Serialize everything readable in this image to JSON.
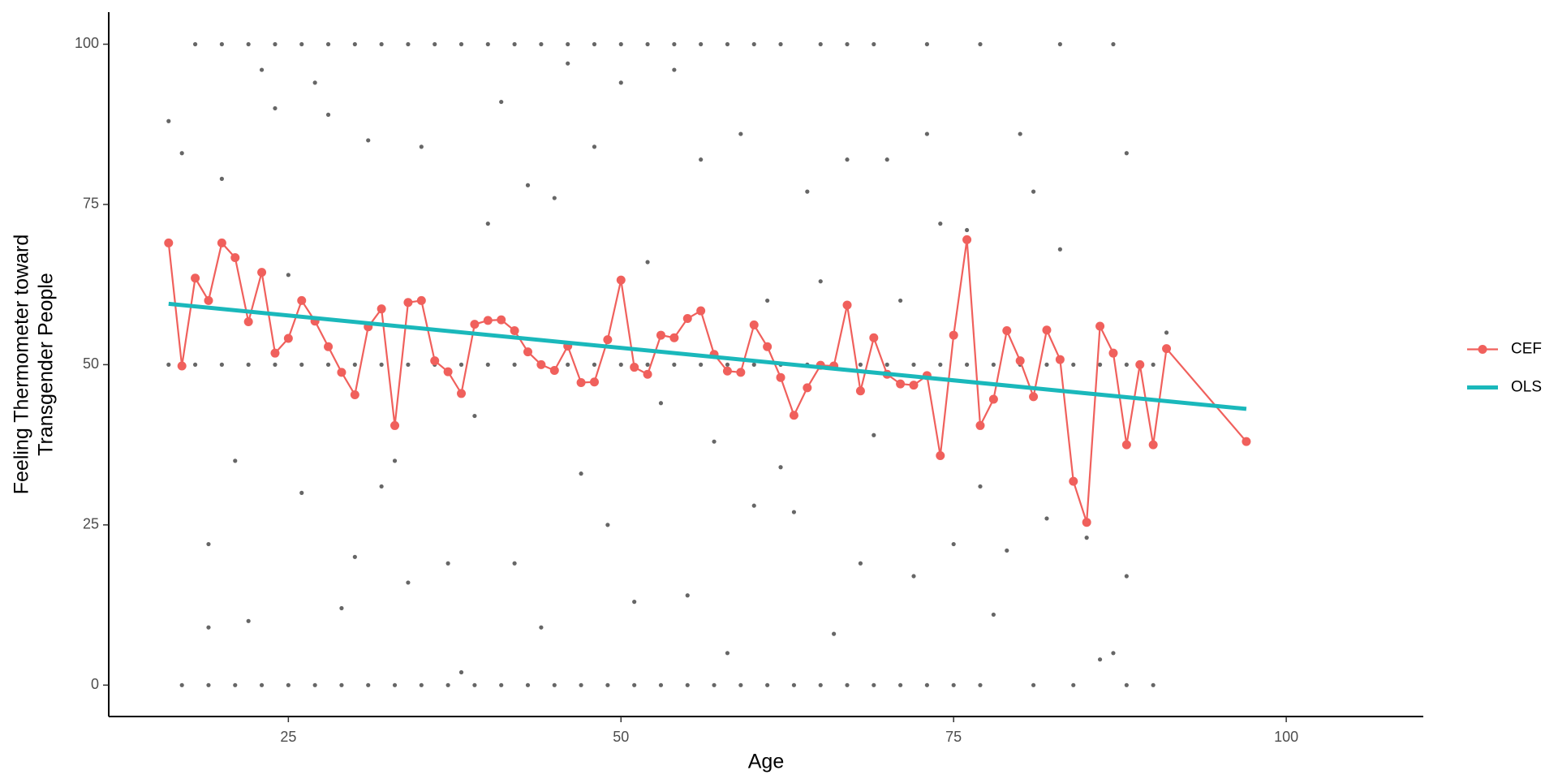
{
  "chart_data": {
    "type": "scatter",
    "xlabel": "Age",
    "ylabel": [
      "Feeling Thermometer toward",
      "Transgender People"
    ],
    "xlim": [
      11.5,
      110.3
    ],
    "ylim": [
      -4.9,
      105
    ],
    "xticks": [
      25,
      50,
      75,
      100
    ],
    "yticks": [
      0,
      25,
      50,
      75,
      100
    ],
    "grid": false,
    "legend": "right",
    "series": [
      {
        "type": "scatter",
        "color": "#000000",
        "x": [
          18,
          20,
          22,
          24,
          26,
          28,
          30,
          32,
          34,
          36,
          38,
          40,
          42,
          44,
          46,
          48,
          50,
          52,
          54,
          56,
          58,
          60,
          62,
          65,
          67,
          69,
          73,
          77,
          83,
          87,
          16,
          18,
          20,
          22,
          24,
          26,
          28,
          30,
          32,
          34,
          36,
          38,
          40,
          42,
          44,
          46,
          48,
          50,
          52,
          54,
          56,
          58,
          60,
          62,
          64,
          66,
          68,
          70,
          72,
          74,
          76,
          78,
          80,
          82,
          84,
          86,
          88,
          90,
          17,
          19,
          21,
          23,
          25,
          27,
          29,
          31,
          33,
          35,
          37,
          39,
          41,
          43,
          45,
          47,
          49,
          51,
          53,
          55,
          57,
          59,
          61,
          63,
          65,
          67,
          69,
          71,
          73,
          75,
          77,
          81,
          84,
          88,
          90,
          16,
          17,
          19,
          19,
          20,
          21,
          22,
          23,
          24,
          25,
          26,
          27,
          28,
          29,
          30,
          31,
          32,
          33,
          34,
          35,
          37,
          38,
          39,
          40,
          41,
          42,
          43,
          44,
          45,
          46,
          47,
          48,
          49,
          50,
          51,
          52,
          53,
          54,
          55,
          56,
          57,
          58,
          59,
          60,
          61,
          62,
          63,
          64,
          65,
          66,
          67,
          68,
          69,
          70,
          71,
          72,
          73,
          74,
          75,
          76,
          77,
          78,
          79,
          80,
          81,
          82,
          83,
          85,
          86,
          87,
          88,
          88,
          91
        ],
        "values": [
          100,
          100,
          100,
          100,
          100,
          100,
          100,
          100,
          100,
          100,
          100,
          100,
          100,
          100,
          100,
          100,
          100,
          100,
          100,
          100,
          100,
          100,
          100,
          100,
          100,
          100,
          100,
          100,
          100,
          100,
          50,
          50,
          50,
          50,
          50,
          50,
          50,
          50,
          50,
          50,
          50,
          50,
          50,
          50,
          50,
          50,
          50,
          50,
          50,
          50,
          50,
          50,
          50,
          50,
          50,
          50,
          50,
          50,
          50,
          50,
          50,
          50,
          50,
          50,
          50,
          50,
          50,
          50,
          0,
          0,
          0,
          0,
          0,
          0,
          0,
          0,
          0,
          0,
          0,
          0,
          0,
          0,
          0,
          0,
          0,
          0,
          0,
          0,
          0,
          0,
          0,
          0,
          0,
          0,
          0,
          0,
          0,
          0,
          0,
          0,
          0,
          0,
          0,
          88,
          83,
          22,
          9,
          79,
          35,
          10,
          96,
          90,
          64,
          30,
          94,
          89,
          12,
          20,
          85,
          31,
          35,
          16,
          84,
          19,
          2,
          42,
          72,
          91,
          19,
          78,
          9,
          76,
          97,
          33,
          84,
          25,
          94,
          13,
          66,
          44,
          96,
          14,
          82,
          38,
          5,
          86,
          28,
          60,
          34,
          27,
          77,
          63,
          8,
          82,
          19,
          39,
          82,
          60,
          17,
          86,
          72,
          22,
          71,
          31,
          11,
          21,
          86,
          77,
          26,
          68,
          23,
          4,
          5,
          83,
          17,
          55
        ]
      },
      {
        "type": "line_points",
        "name": "CEF",
        "color": "#f0605c",
        "x": [
          16,
          17,
          18,
          19,
          20,
          21,
          22,
          23,
          24,
          25,
          26,
          27,
          28,
          29,
          30,
          31,
          32,
          33,
          34,
          35,
          36,
          37,
          38,
          39,
          40,
          41,
          42,
          43,
          44,
          45,
          46,
          47,
          48,
          49,
          50,
          51,
          52,
          53,
          54,
          55,
          56,
          57,
          58,
          59,
          60,
          61,
          62,
          63,
          64,
          65,
          66,
          67,
          68,
          69,
          70,
          71,
          72,
          73,
          74,
          75,
          76,
          77,
          78,
          79,
          80,
          81,
          82,
          83,
          84,
          85,
          86,
          87,
          88,
          89,
          90,
          91,
          97
        ],
        "values": [
          69,
          49.8,
          63.5,
          60,
          69,
          66.7,
          56.7,
          64.4,
          51.8,
          54.1,
          60,
          56.8,
          52.8,
          48.8,
          45.3,
          55.9,
          58.7,
          40.5,
          59.7,
          60,
          50.6,
          48.9,
          45.5,
          56.3,
          56.9,
          57,
          55.3,
          52,
          50,
          49.1,
          52.9,
          47.2,
          47.3,
          53.9,
          63.2,
          49.6,
          48.5,
          54.6,
          54.2,
          57.2,
          58.4,
          51.6,
          49,
          48.8,
          56.2,
          52.8,
          48,
          42.1,
          46.4,
          49.9,
          49.8,
          59.3,
          45.9,
          54.2,
          48.5,
          47,
          46.8,
          48.3,
          35.8,
          54.6,
          69.5,
          40.5,
          44.6,
          55.3,
          50.6,
          45,
          55.4,
          50.8,
          31.8,
          25.4,
          56,
          51.8,
          37.5,
          50,
          37.5,
          52.5,
          38
        ]
      },
      {
        "type": "line",
        "name": "OLS",
        "color": "#1ab8bb",
        "x": [
          16,
          97
        ],
        "values": [
          59.5,
          43.1
        ]
      }
    ]
  }
}
